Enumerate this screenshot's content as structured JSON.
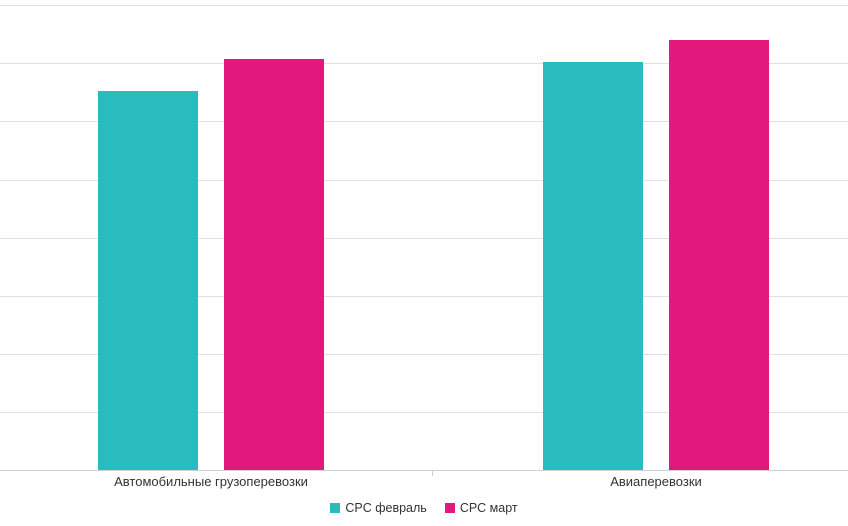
{
  "chart_data": {
    "type": "bar",
    "title": "",
    "xlabel": "",
    "ylabel": "",
    "categories": [
      "Автомобильные грузоперевозки",
      "Авиаперевозки"
    ],
    "series": [
      {
        "name": "CPC февраль",
        "color": "#29BCBE",
        "values": [
          65.2,
          70.2
        ]
      },
      {
        "name": "CPC март",
        "color": "#E3187C",
        "values": [
          70.7,
          74.0
        ]
      }
    ],
    "ylim": [
      0,
      80.9
    ],
    "grid_step": 10,
    "grid": true,
    "y_axis_labels_visible": false,
    "legend_position": "bottom",
    "colors": {
      "gridline": "#e0e0e0",
      "axis_line": "#d0d0d0",
      "label_text": "#333333"
    }
  }
}
